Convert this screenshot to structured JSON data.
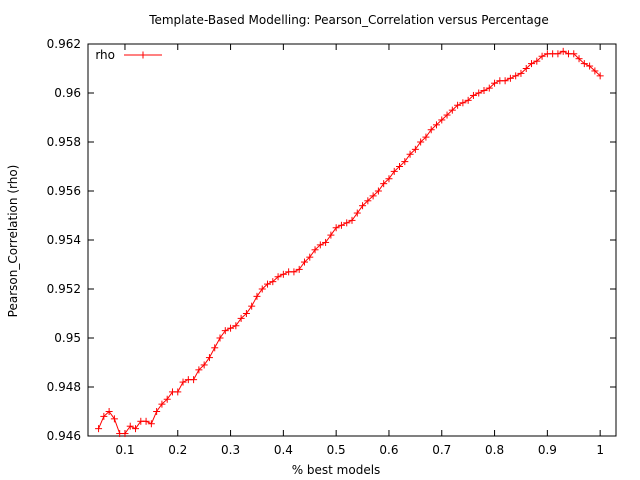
{
  "chart_data": {
    "type": "line",
    "title": "Template-Based Modelling: Pearson_Correlation versus Percentage",
    "xlabel": "% best models",
    "ylabel": "Pearson_Correlation (rho)",
    "xlim": [
      0.03,
      1.03
    ],
    "ylim": [
      0.946,
      0.962
    ],
    "xticks": [
      "0.1",
      "0.2",
      "0.3",
      "0.4",
      "0.5",
      "0.6",
      "0.7",
      "0.8",
      "0.9",
      "1"
    ],
    "yticks": [
      "0.946",
      "0.948",
      "0.95",
      "0.952",
      "0.954",
      "0.956",
      "0.958",
      "0.96",
      "0.962"
    ],
    "grid": false,
    "legend_position": "top-left",
    "series": [
      {
        "name": "rho",
        "color": "#ff0000",
        "marker": "plus",
        "x": [
          0.05,
          0.06,
          0.07,
          0.08,
          0.09,
          0.1,
          0.11,
          0.12,
          0.13,
          0.14,
          0.15,
          0.16,
          0.17,
          0.18,
          0.19,
          0.2,
          0.21,
          0.22,
          0.23,
          0.24,
          0.25,
          0.26,
          0.27,
          0.28,
          0.29,
          0.3,
          0.31,
          0.32,
          0.33,
          0.34,
          0.35,
          0.36,
          0.37,
          0.38,
          0.39,
          0.4,
          0.41,
          0.42,
          0.43,
          0.44,
          0.45,
          0.46,
          0.47,
          0.48,
          0.49,
          0.5,
          0.51,
          0.52,
          0.53,
          0.54,
          0.55,
          0.56,
          0.57,
          0.58,
          0.59,
          0.6,
          0.61,
          0.62,
          0.63,
          0.64,
          0.65,
          0.66,
          0.67,
          0.68,
          0.69,
          0.7,
          0.71,
          0.72,
          0.73,
          0.74,
          0.75,
          0.76,
          0.77,
          0.78,
          0.79,
          0.8,
          0.81,
          0.82,
          0.83,
          0.84,
          0.85,
          0.86,
          0.87,
          0.88,
          0.89,
          0.9,
          0.91,
          0.92,
          0.93,
          0.94,
          0.95,
          0.96,
          0.97,
          0.98,
          0.99,
          1.0
        ],
        "y": [
          0.9463,
          0.9468,
          0.947,
          0.9467,
          0.9461,
          0.9461,
          0.9464,
          0.9463,
          0.9466,
          0.9466,
          0.9465,
          0.947,
          0.9473,
          0.9475,
          0.9478,
          0.9478,
          0.9482,
          0.9483,
          0.9483,
          0.9487,
          0.9489,
          0.9492,
          0.9496,
          0.95,
          0.9503,
          0.9504,
          0.9505,
          0.9508,
          0.951,
          0.9513,
          0.9517,
          0.952,
          0.9522,
          0.9523,
          0.9525,
          0.9526,
          0.9527,
          0.9527,
          0.9528,
          0.9531,
          0.9533,
          0.9536,
          0.9538,
          0.9539,
          0.9542,
          0.9545,
          0.9546,
          0.9547,
          0.9548,
          0.9551,
          0.9554,
          0.9556,
          0.9558,
          0.956,
          0.9563,
          0.9565,
          0.9568,
          0.957,
          0.9572,
          0.9575,
          0.9577,
          0.958,
          0.9582,
          0.9585,
          0.9587,
          0.9589,
          0.9591,
          0.9593,
          0.9595,
          0.9596,
          0.9597,
          0.9599,
          0.96,
          0.9601,
          0.9602,
          0.9604,
          0.9605,
          0.9605,
          0.9606,
          0.9607,
          0.9608,
          0.961,
          0.9612,
          0.9613,
          0.9615,
          0.9616,
          0.9616,
          0.9616,
          0.9617,
          0.9616,
          0.9616,
          0.9614,
          0.9612,
          0.9611,
          0.9609,
          0.9607
        ]
      }
    ]
  }
}
